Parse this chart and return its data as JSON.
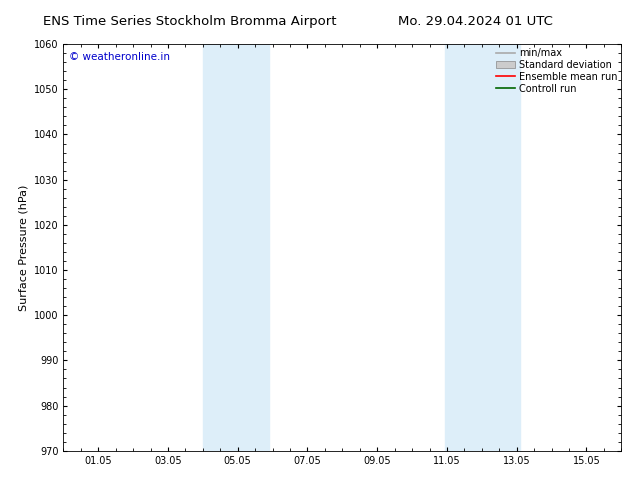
{
  "title_left": "ENS Time Series Stockholm Bromma Airport",
  "title_right": "Mo. 29.04.2024 01 UTC",
  "ylabel": "Surface Pressure (hPa)",
  "ylim": [
    970,
    1060
  ],
  "yticks": [
    970,
    980,
    990,
    1000,
    1010,
    1020,
    1030,
    1040,
    1050,
    1060
  ],
  "xtick_positions": [
    1,
    3,
    5,
    7,
    9,
    11,
    13,
    15
  ],
  "xtick_labels": [
    "01.05",
    "03.05",
    "05.05",
    "07.05",
    "09.05",
    "11.05",
    "13.05",
    "15.05"
  ],
  "xlim": [
    0,
    16
  ],
  "shaded_bands": [
    {
      "xmin": 4.0,
      "xmax": 4.95,
      "color": "#ddeef9",
      "alpha": 1.0
    },
    {
      "xmin": 4.95,
      "xmax": 5.9,
      "color": "#ddeef9",
      "alpha": 1.0
    },
    {
      "xmin": 10.95,
      "xmax": 12.0,
      "color": "#ddeef9",
      "alpha": 1.0
    },
    {
      "xmin": 12.0,
      "xmax": 13.1,
      "color": "#ddeef9",
      "alpha": 1.0
    }
  ],
  "watermark_text": "© weatheronline.in",
  "watermark_color": "#0000cc",
  "legend_items": [
    {
      "label": "min/max",
      "color": "#aaaaaa",
      "type": "line"
    },
    {
      "label": "Standard deviation",
      "color": "#cccccc",
      "type": "box"
    },
    {
      "label": "Ensemble mean run",
      "color": "#ff0000",
      "type": "line"
    },
    {
      "label": "Controll run",
      "color": "#006600",
      "type": "line"
    }
  ],
  "bg_color": "#ffffff",
  "plot_bg_color": "#ffffff",
  "title_fontsize": 9.5,
  "tick_fontsize": 7,
  "ylabel_fontsize": 8,
  "watermark_fontsize": 7.5,
  "legend_fontsize": 7
}
